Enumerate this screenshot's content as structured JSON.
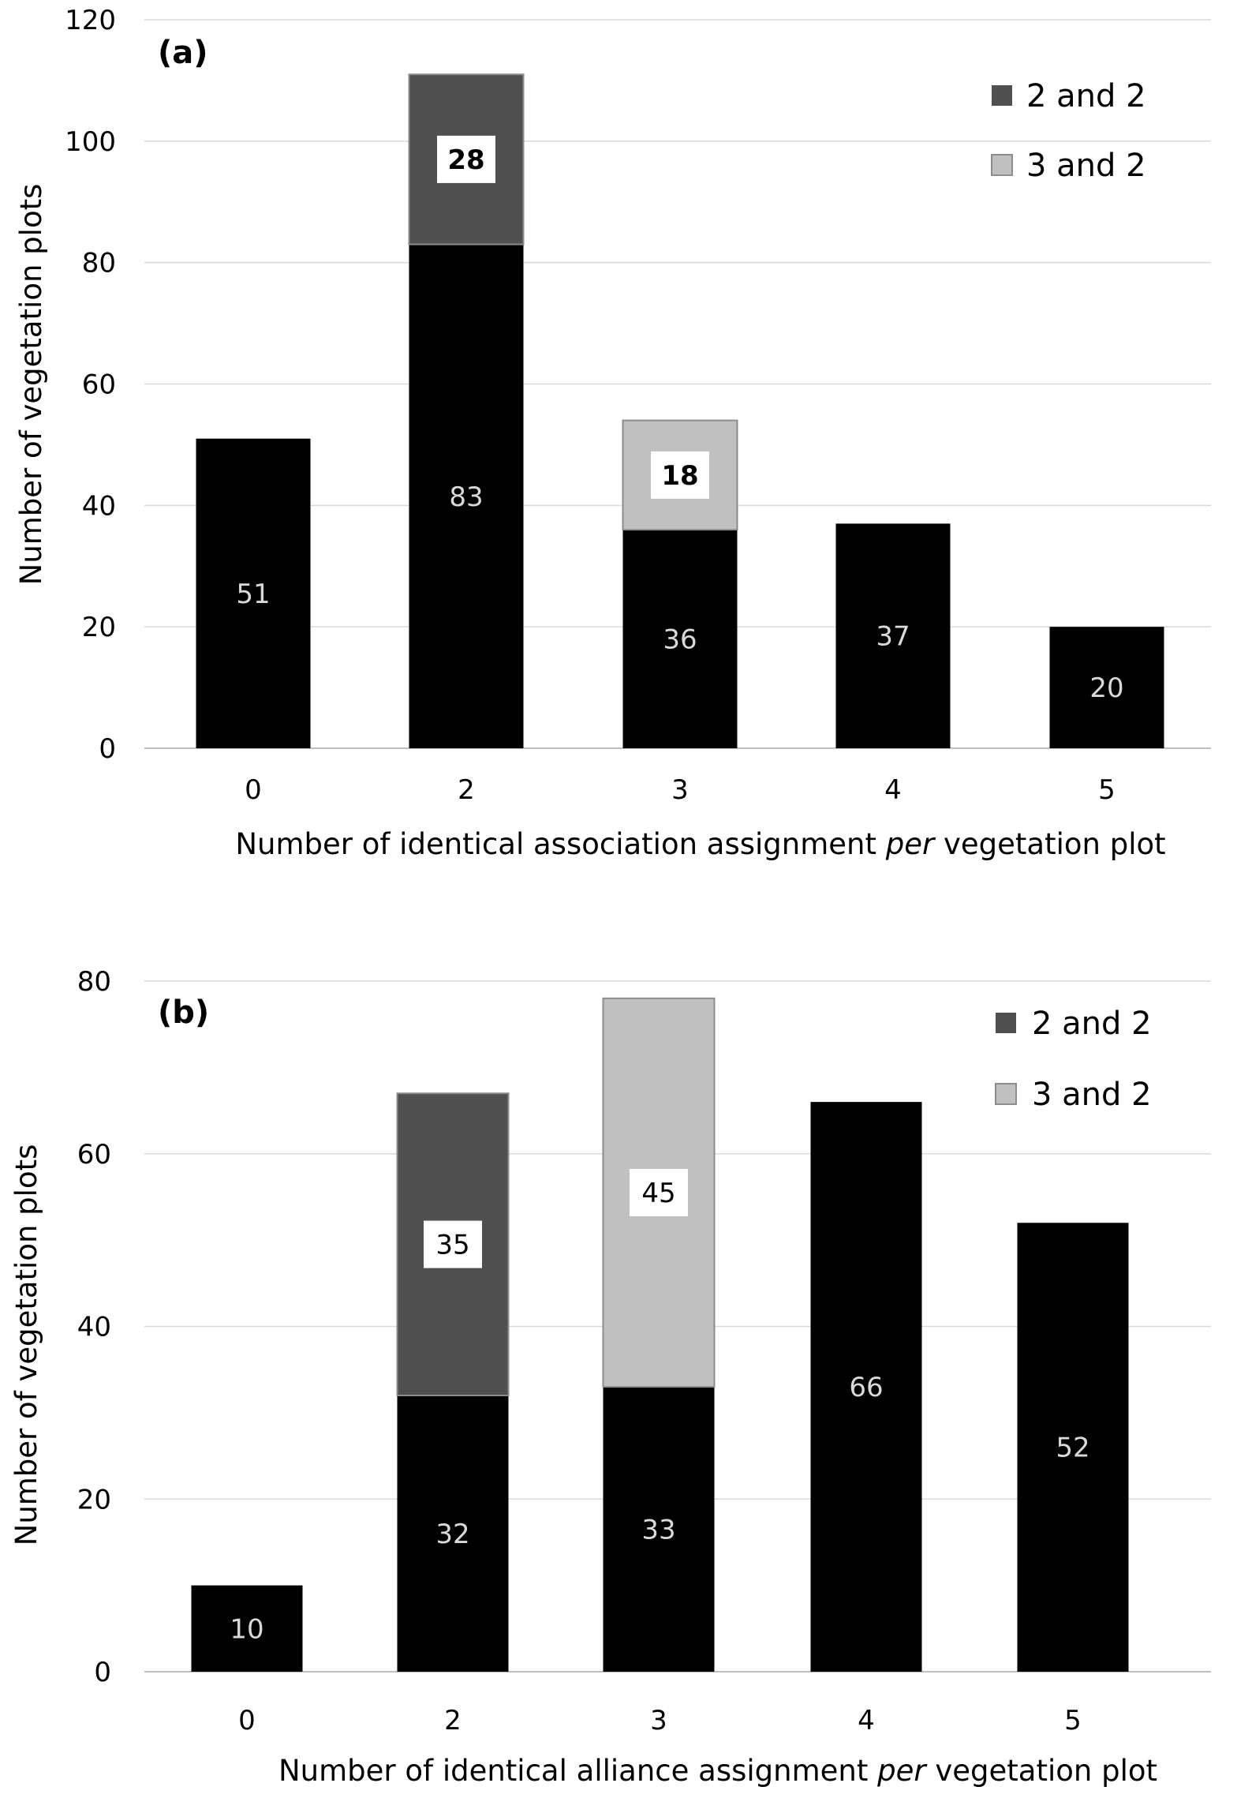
{
  "chart_data": [
    {
      "type": "bar",
      "stacked": true,
      "panel_label": "(a)",
      "categories": [
        "0",
        "2",
        "3",
        "4",
        "5"
      ],
      "series": [
        {
          "values": [
            51,
            83,
            36,
            37,
            20
          ],
          "color": "#000000"
        },
        {
          "name": "2 and 2",
          "values": [
            0,
            28,
            0,
            0,
            0
          ],
          "color": "#505050"
        },
        {
          "name": "3 and 2",
          "values": [
            0,
            0,
            18,
            0,
            0
          ],
          "color": "#c0c0c0"
        }
      ],
      "xlabel_parts": [
        {
          "text": "Number of identical association assignment ",
          "italic": false
        },
        {
          "text": "per",
          "italic": true
        },
        {
          "text": " vegetation plot",
          "italic": false
        }
      ],
      "ylabel": "Number of vegetation plots",
      "ylim": [
        0,
        120
      ],
      "yticks": [
        "0",
        "20",
        "40",
        "60",
        "80",
        "100",
        "120"
      ],
      "grid": true,
      "legend_position": "top-right"
    },
    {
      "type": "bar",
      "stacked": true,
      "panel_label": "(b)",
      "categories": [
        "0",
        "2",
        "3",
        "4",
        "5"
      ],
      "series": [
        {
          "values": [
            10,
            32,
            33,
            66,
            52
          ],
          "color": "#000000"
        },
        {
          "name": "2 and 2",
          "values": [
            0,
            35,
            0,
            0,
            0
          ],
          "color": "#505050"
        },
        {
          "name": "3 and 2",
          "values": [
            0,
            0,
            45,
            0,
            0
          ],
          "color": "#c0c0c0"
        }
      ],
      "xlabel_parts": [
        {
          "text": "Number of identical alliance assignment ",
          "italic": false
        },
        {
          "text": "per",
          "italic": true
        },
        {
          "text": " vegetation plot",
          "italic": false
        }
      ],
      "ylabel": "Number of vegetation plots",
      "ylim": [
        0,
        80
      ],
      "yticks": [
        "0",
        "20",
        "40",
        "60",
        "80"
      ],
      "grid": true,
      "legend_position": "top-right"
    }
  ]
}
